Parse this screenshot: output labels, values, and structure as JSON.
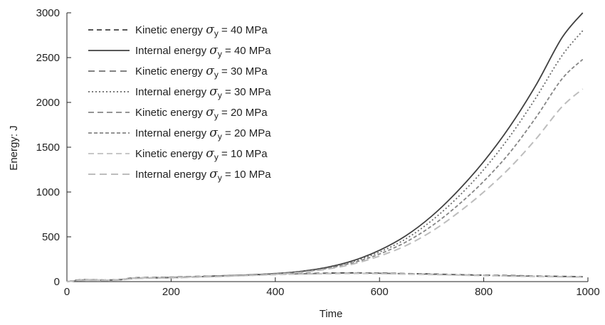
{
  "chart_data": {
    "type": "line",
    "title": "",
    "xlabel": "Time",
    "ylabel": "Energy: J",
    "xlim": [
      0,
      1000
    ],
    "ylim": [
      0,
      3000
    ],
    "xticks": [
      0,
      200,
      400,
      600,
      800,
      1000
    ],
    "yticks": [
      0,
      500,
      1000,
      1500,
      2000,
      2500,
      3000
    ],
    "grid": false,
    "legend_position": "top-left",
    "x": [
      0,
      25,
      50,
      75,
      100,
      125,
      150,
      200,
      250,
      300,
      350,
      400,
      450,
      500,
      550,
      600,
      650,
      700,
      750,
      800,
      850,
      900,
      950,
      990
    ],
    "series": [
      {
        "name": "Kinetic energy σy = 40 MPa",
        "symbol": "σ",
        "subscript": "y",
        "prefix": "Kinetic energy",
        "suffix": "= 40 MPa",
        "color": "#404040",
        "dash": "7,5",
        "width": 1.8,
        "values": [
          0,
          20,
          20,
          18,
          22,
          40,
          45,
          50,
          58,
          65,
          75,
          85,
          90,
          95,
          98,
          95,
          90,
          85,
          78,
          72,
          68,
          62,
          58,
          55
        ]
      },
      {
        "name": "Internal energy σy = 40 MPa",
        "symbol": "σ",
        "subscript": "y",
        "prefix": "Internal energy",
        "suffix": "= 40 MPa",
        "color": "#404040",
        "dash": "",
        "width": 1.8,
        "values": [
          0,
          15,
          18,
          16,
          20,
          35,
          40,
          45,
          55,
          65,
          75,
          90,
          115,
          160,
          235,
          350,
          510,
          730,
          1010,
          1340,
          1730,
          2190,
          2720,
          3000
        ]
      },
      {
        "name": "Kinetic energy σy = 30 MPa",
        "symbol": "σ",
        "subscript": "y",
        "prefix": "Kinetic energy",
        "suffix": "= 30 MPa",
        "color": "#707070",
        "dash": "9,6",
        "width": 1.8,
        "values": [
          0,
          18,
          19,
          17,
          21,
          38,
          43,
          48,
          56,
          63,
          72,
          82,
          87,
          92,
          95,
          93,
          88,
          82,
          76,
          70,
          65,
          60,
          56,
          53
        ]
      },
      {
        "name": "Internal energy σy = 30 MPa",
        "symbol": "σ",
        "subscript": "y",
        "prefix": "Internal energy",
        "suffix": "= 30 MPa",
        "color": "#6a6a6a",
        "dash": "2,3",
        "width": 1.8,
        "values": [
          0,
          14,
          17,
          15,
          19,
          34,
          39,
          44,
          54,
          63,
          73,
          88,
          112,
          155,
          225,
          330,
          475,
          680,
          940,
          1250,
          1620,
          2050,
          2520,
          2800
        ]
      },
      {
        "name": "Kinetic energy σy = 20 MPa",
        "symbol": "σ",
        "subscript": "y",
        "prefix": "Kinetic energy",
        "suffix": "= 20 MPa",
        "color": "#959595",
        "dash": "8,5",
        "width": 2,
        "values": [
          0,
          16,
          18,
          16,
          20,
          36,
          41,
          46,
          54,
          61,
          70,
          80,
          85,
          89,
          92,
          90,
          85,
          80,
          74,
          68,
          63,
          58,
          54,
          51
        ]
      },
      {
        "name": "Internal energy σy = 20 MPa",
        "symbol": "σ",
        "subscript": "y",
        "prefix": "Internal energy",
        "suffix": "= 20 MPa",
        "color": "#858585",
        "dash": "5,3",
        "width": 1.8,
        "values": [
          0,
          13,
          16,
          14,
          18,
          33,
          38,
          43,
          52,
          61,
          71,
          85,
          108,
          148,
          212,
          308,
          440,
          620,
          850,
          1120,
          1440,
          1830,
          2260,
          2480
        ]
      },
      {
        "name": "Kinetic energy σy = 10 MPa",
        "symbol": "σ",
        "subscript": "y",
        "prefix": "Kinetic energy",
        "suffix": "= 10 MPa",
        "color": "#c8c8c8",
        "dash": "8,5",
        "width": 2,
        "values": [
          0,
          15,
          17,
          15,
          19,
          35,
          40,
          45,
          52,
          59,
          68,
          78,
          83,
          87,
          90,
          88,
          83,
          78,
          72,
          66,
          61,
          56,
          52,
          49
        ]
      },
      {
        "name": "Internal energy σy = 10 MPa",
        "symbol": "σ",
        "subscript": "y",
        "prefix": "Internal energy",
        "suffix": "= 10 MPa",
        "color": "#bdbdbd",
        "dash": "10,6",
        "width": 2,
        "values": [
          0,
          12,
          15,
          13,
          17,
          32,
          37,
          42,
          50,
          59,
          69,
          82,
          103,
          140,
          198,
          285,
          400,
          560,
          765,
          1000,
          1270,
          1590,
          1950,
          2150
        ]
      }
    ]
  }
}
